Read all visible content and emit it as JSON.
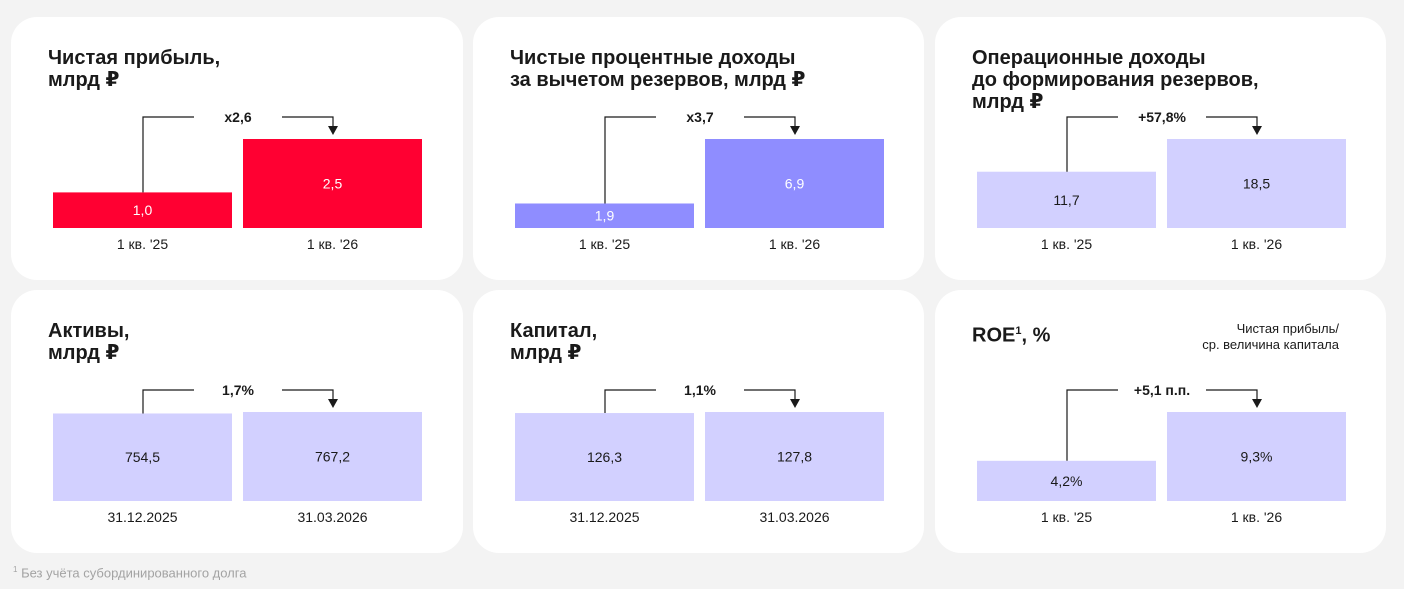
{
  "footnote": {
    "marker": "1",
    "text": "Без учёта субординированного долга"
  },
  "chart_data": [
    {
      "type": "bar",
      "title": "Чистая прибыль,\nмлрд ₽",
      "categories": [
        "1 кв. '25",
        "1 кв. '26"
      ],
      "values": [
        1.0,
        2.5
      ],
      "value_labels": [
        "1,0",
        "2,5"
      ],
      "change_label": "x2,6",
      "colors": [
        "#ff0032",
        "#ff0032"
      ],
      "label_color": "#ffffff",
      "ylim": [
        0,
        2.5
      ]
    },
    {
      "type": "bar",
      "title": "Чистые процентные доходы\nза вычетом резервов, млрд ₽",
      "categories": [
        "1 кв. '25",
        "1 кв. '26"
      ],
      "values": [
        1.9,
        6.9
      ],
      "value_labels": [
        "1,9",
        "6,9"
      ],
      "change_label": "x3,7",
      "colors": [
        "#8f8dff",
        "#8f8dff"
      ],
      "label_color": "#ffffff",
      "ylim": [
        0,
        6.9
      ]
    },
    {
      "type": "bar",
      "title": "Операционные доходы\nдо формирования резервов,\nмлрд ₽",
      "categories": [
        "1 кв. '25",
        "1 кв. '26"
      ],
      "values": [
        11.7,
        18.5
      ],
      "value_labels": [
        "11,7",
        "18,5"
      ],
      "change_label": "+57,8%",
      "colors": [
        "#d2d0ff",
        "#d2d0ff"
      ],
      "label_color": "#1a1a1a",
      "ylim": [
        0,
        18.5
      ]
    },
    {
      "type": "bar",
      "title": "Активы,\nмлрд ₽",
      "categories": [
        "31.12.2025",
        "31.03.2026"
      ],
      "values": [
        754.5,
        767.2
      ],
      "value_labels": [
        "754,5",
        "767,2"
      ],
      "change_label": "1,7%",
      "colors": [
        "#d2d0ff",
        "#d2d0ff"
      ],
      "label_color": "#1a1a1a",
      "ylim": [
        0,
        767.2
      ]
    },
    {
      "type": "bar",
      "title": "Капитал,\nмлрд ₽",
      "categories": [
        "31.12.2025",
        "31.03.2026"
      ],
      "values": [
        126.3,
        127.8
      ],
      "value_labels": [
        "126,3",
        "127,8"
      ],
      "change_label": "1,1%",
      "colors": [
        "#d2d0ff",
        "#d2d0ff"
      ],
      "label_color": "#1a1a1a",
      "ylim": [
        0,
        127.8
      ]
    },
    {
      "type": "bar",
      "title": "ROE",
      "title_sup": "1",
      "title_suffix": ", %",
      "note": "Чистая прибыль/\nср. величина капитала",
      "categories": [
        "1 кв. '25",
        "1 кв. '26"
      ],
      "values": [
        4.2,
        9.3
      ],
      "value_labels": [
        "4,2%",
        "9,3%"
      ],
      "change_label": "+5,1 п.п.",
      "colors": [
        "#d2d0ff",
        "#d2d0ff"
      ],
      "label_color": "#1a1a1a",
      "ylim": [
        0,
        9.3
      ]
    }
  ]
}
